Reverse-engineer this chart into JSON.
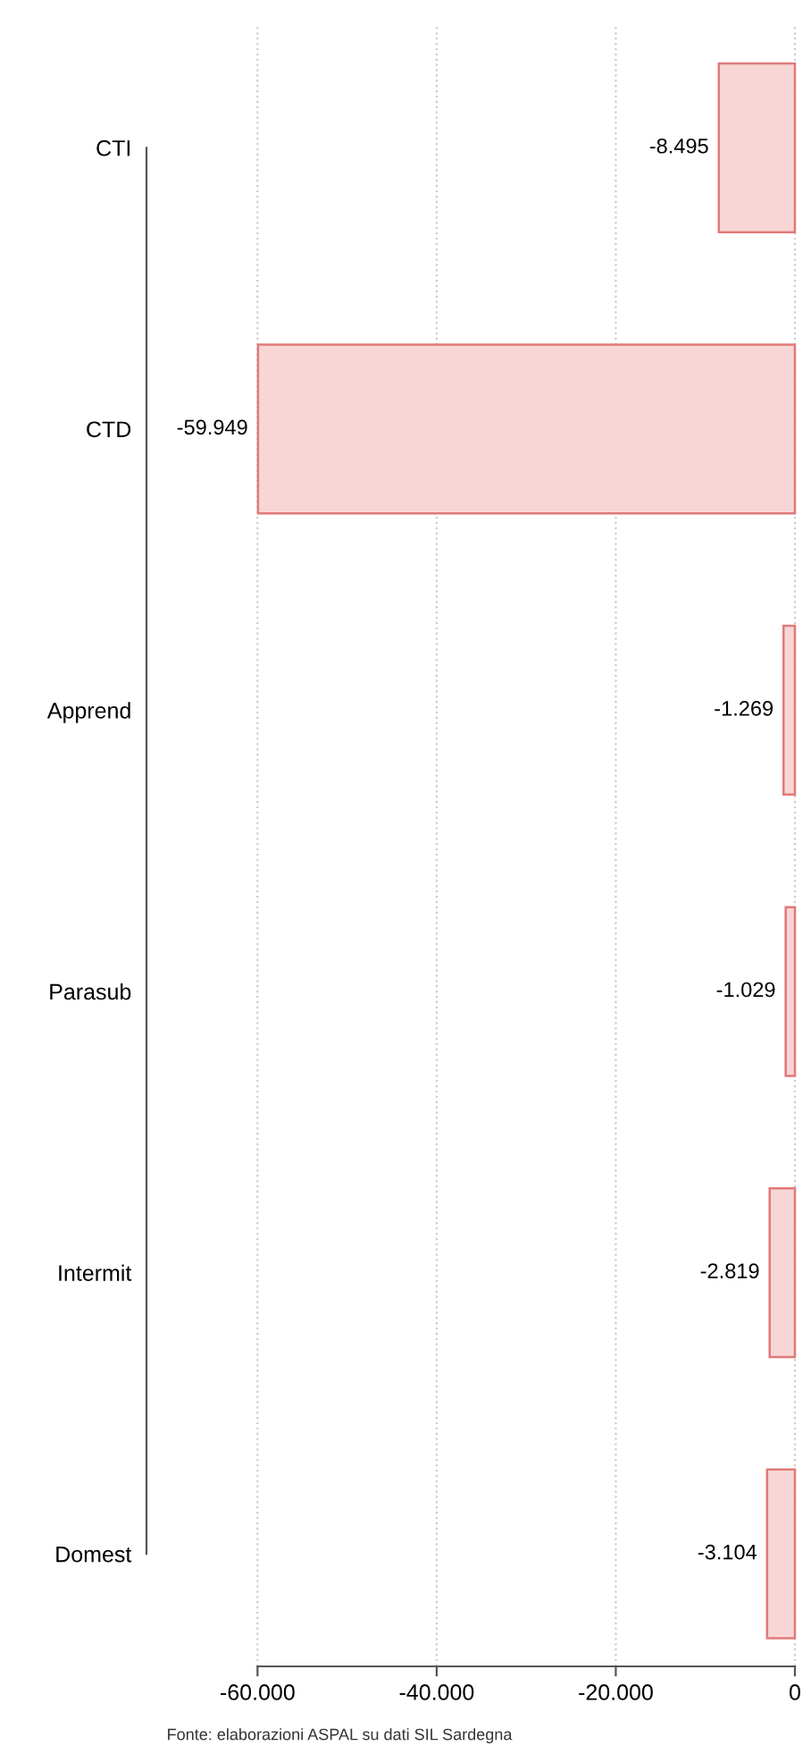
{
  "chart_data": {
    "type": "bar",
    "orientation": "horizontal",
    "categories": [
      "CTI",
      "CTD",
      "Apprend",
      "Parasub",
      "Intermit",
      "Domest"
    ],
    "values": [
      -8495,
      -59949,
      -1269,
      -1029,
      -2819,
      -3104
    ],
    "value_labels": [
      "-8.495",
      "-59.949",
      "-1.269",
      "-1.029",
      "-2.819",
      "-3.104"
    ],
    "color": "#f9d6d6",
    "xlim": [
      -72400,
      400
    ],
    "xticks": [
      {
        "value": -60000,
        "label": "-60.000"
      },
      {
        "value": -40000,
        "label": "-40.000"
      },
      {
        "value": -20000,
        "label": "-20.000"
      },
      0
    ],
    "grid": "x",
    "annotations": [
      "Fonte: elaborazioni ASPAL su dati SIL Sardegna"
    ]
  }
}
